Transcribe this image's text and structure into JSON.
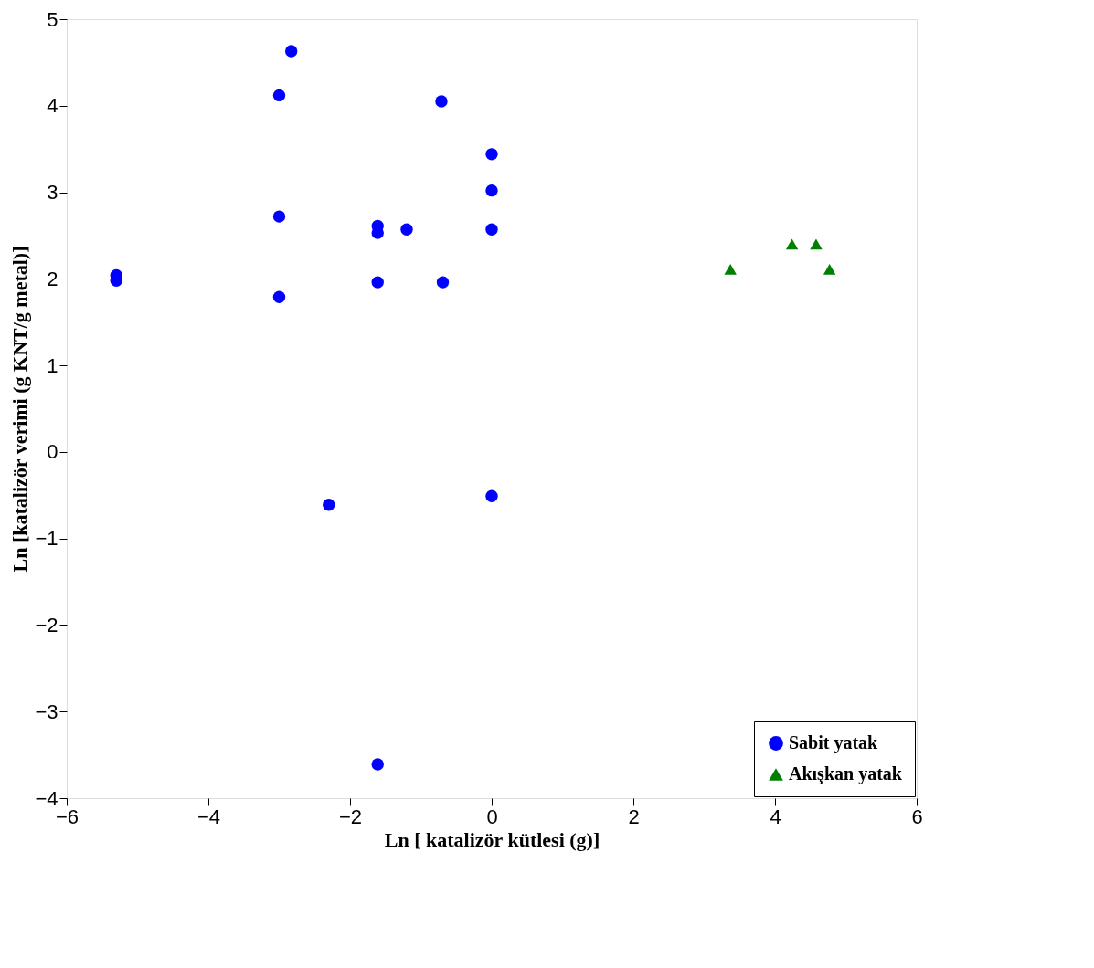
{
  "chart_data": {
    "type": "scatter",
    "xlabel": "Ln [ katalizör kütlesi (g)]",
    "ylabel": "Ln [katalizör verimi (g KNT/g metal)]",
    "xlim": [
      -6,
      6
    ],
    "xticks": [
      -6,
      -4,
      -2,
      0,
      2,
      4,
      6
    ],
    "ylim": [
      -4,
      5
    ],
    "yticks": [
      -4,
      -3,
      -2,
      -1,
      0,
      1,
      2,
      3,
      4,
      5
    ],
    "grid": false,
    "legend": "bottom right",
    "series": [
      {
        "name": "Sabit yatak",
        "color": "#0000ff",
        "marker": "circle",
        "x": [
          -5.3,
          -5.3,
          -2.83,
          -3.0,
          -3.0,
          -3.0,
          -0.71,
          0,
          0,
          0,
          -1.61,
          -1.61,
          -1.2,
          -1.61,
          -0.69,
          -2.3,
          0,
          -1.61
        ],
        "values": [
          2.04,
          1.98,
          4.63,
          4.12,
          2.72,
          1.79,
          4.05,
          3.44,
          3.02,
          2.57,
          2.61,
          2.53,
          2.57,
          1.96,
          1.96,
          -0.61,
          -0.51,
          -3.61
        ]
      },
      {
        "name": "Akışkan yatak",
        "color": "#007f00",
        "marker": "triangle",
        "x": [
          3.37,
          4.24,
          4.58,
          4.77
        ],
        "values": [
          2.11,
          2.4,
          2.4,
          2.11
        ]
      }
    ]
  }
}
